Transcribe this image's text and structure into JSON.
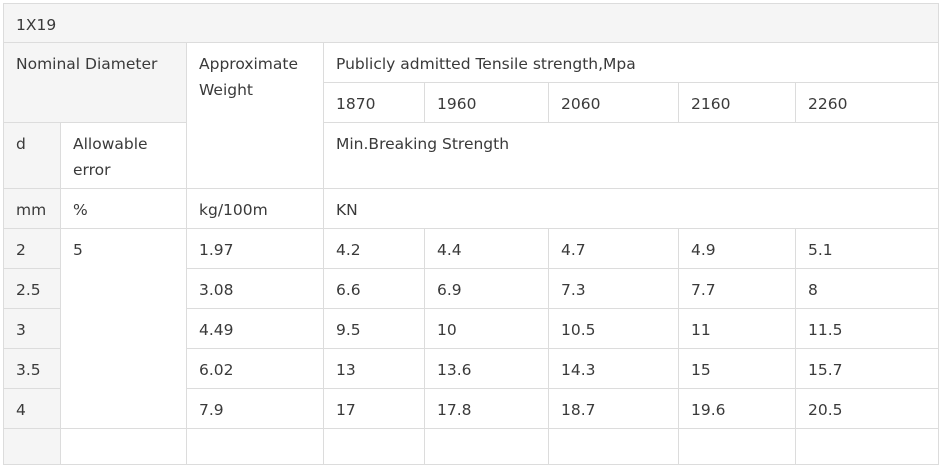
{
  "table": {
    "title": "1X19",
    "nominal_diameter": "Nominal Diameter",
    "approximate_weight": "Approximate Weight",
    "tensile_strength": "Publicly admitted Tensile strength,Mpa",
    "grades": [
      "1870",
      "1960",
      "2060",
      "2160",
      "2260"
    ],
    "d": "d",
    "allowable_error": "Allowable error",
    "min_breaking_strength": "Min.Breaking Strength",
    "units": {
      "diameter": "mm",
      "error": "%",
      "weight": "kg/100m",
      "strength": "KN"
    },
    "allowable_error_value": "5",
    "rows": [
      {
        "d": "2",
        "weight": "1.97",
        "strengths": [
          "4.2",
          "4.4",
          "4.7",
          "4.9",
          "5.1"
        ]
      },
      {
        "d": "2.5",
        "weight": "3.08",
        "strengths": [
          "6.6",
          "6.9",
          "7.3",
          "7.7",
          "8"
        ]
      },
      {
        "d": "3",
        "weight": "4.49",
        "strengths": [
          "9.5",
          "10",
          "10.5",
          "11",
          "11.5"
        ]
      },
      {
        "d": "3.5",
        "weight": "6.02",
        "strengths": [
          "13",
          "13.6",
          "14.3",
          "15",
          "15.7"
        ]
      },
      {
        "d": "4",
        "weight": "7.9",
        "strengths": [
          "17",
          "17.8",
          "18.7",
          "19.6",
          "20.5"
        ]
      }
    ]
  }
}
